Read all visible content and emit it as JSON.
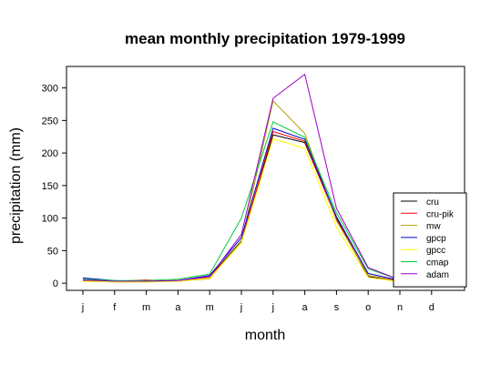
{
  "chart_data": {
    "type": "line",
    "title": "mean monthly precipitation 1979-1999",
    "xlabel": "month",
    "ylabel": "precipitation (mm)",
    "categories": [
      "j",
      "f",
      "m",
      "a",
      "m",
      "j",
      "j",
      "a",
      "s",
      "o",
      "n",
      "d"
    ],
    "yticks": [
      0,
      50,
      100,
      150,
      200,
      250,
      300
    ],
    "ylim": [
      -11,
      333
    ],
    "grid": false,
    "legend_position": "bottom-right",
    "series": [
      {
        "name": "cru",
        "color": "#000000",
        "values": [
          5,
          3,
          3,
          4,
          10,
          65,
          228,
          216,
          100,
          10,
          3,
          4
        ]
      },
      {
        "name": "cru-pik",
        "color": "#ff0000",
        "values": [
          4,
          3,
          5,
          3,
          9,
          63,
          233,
          218,
          98,
          12,
          3,
          4
        ]
      },
      {
        "name": "mw",
        "color": "#b8a000",
        "values": [
          3,
          2,
          2,
          3,
          7,
          64,
          280,
          230,
          96,
          12,
          2,
          3
        ]
      },
      {
        "name": "gpcp",
        "color": "#0000cc",
        "values": [
          8,
          4,
          3,
          4,
          12,
          70,
          238,
          221,
          102,
          15,
          4,
          4
        ]
      },
      {
        "name": "gpcc",
        "color": "#ffff00",
        "values": [
          3,
          2,
          2,
          3,
          8,
          62,
          222,
          207,
          86,
          9,
          2,
          3
        ]
      },
      {
        "name": "cmap",
        "color": "#00cc33",
        "values": [
          6,
          4,
          4,
          6,
          14,
          100,
          248,
          224,
          108,
          22,
          5,
          5
        ]
      },
      {
        "name": "adam",
        "color": "#9900cc",
        "values": [
          5,
          3,
          3,
          4,
          10,
          75,
          284,
          321,
          115,
          24,
          5,
          6
        ]
      }
    ]
  }
}
